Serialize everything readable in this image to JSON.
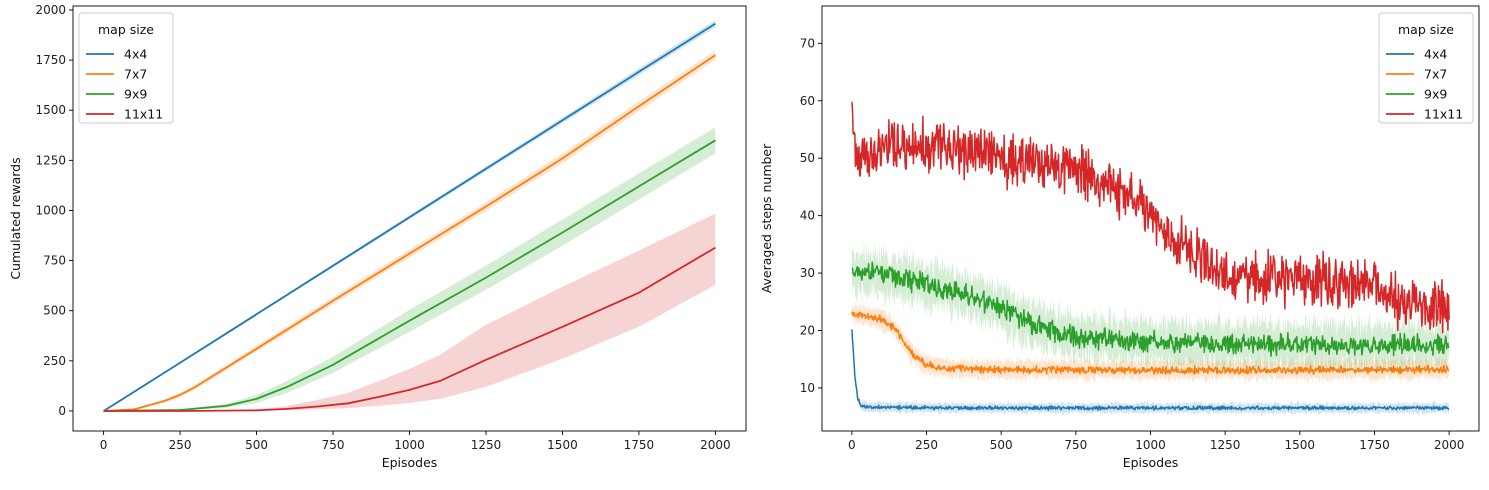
{
  "chart_data": [
    {
      "type": "line",
      "xlabel": "Episodes",
      "ylabel": "Cumulated rewards",
      "xlim": [
        -100,
        2100
      ],
      "ylim": [
        -100,
        2020
      ],
      "xticks": [
        0,
        250,
        500,
        750,
        1000,
        1250,
        1500,
        1750,
        2000
      ],
      "yticks": [
        0,
        250,
        500,
        750,
        1000,
        1250,
        1500,
        1750,
        2000
      ],
      "legend": {
        "title": "map size",
        "position": "upper-left"
      },
      "series": [
        {
          "name": "4x4",
          "color": "#1f77b4",
          "x": [
            0,
            250,
            500,
            750,
            1000,
            1250,
            1500,
            1750,
            2000
          ],
          "values": [
            0,
            240,
            482,
            724,
            966,
            1208,
            1450,
            1692,
            1932
          ],
          "band_lower": [
            0,
            236,
            476,
            716,
            956,
            1196,
            1436,
            1676,
            1914
          ],
          "band_upper": [
            0,
            244,
            488,
            732,
            976,
            1220,
            1464,
            1708,
            1950
          ]
        },
        {
          "name": "7x7",
          "color": "#ff7f0e",
          "x": [
            0,
            100,
            200,
            250,
            300,
            500,
            750,
            1000,
            1250,
            1500,
            1750,
            2000
          ],
          "values": [
            0,
            8,
            50,
            80,
            120,
            310,
            550,
            785,
            1020,
            1260,
            1520,
            1775
          ],
          "band_lower": [
            0,
            5,
            42,
            70,
            108,
            295,
            532,
            765,
            998,
            1236,
            1495,
            1752
          ],
          "band_upper": [
            0,
            11,
            58,
            90,
            132,
            325,
            568,
            805,
            1042,
            1284,
            1545,
            1798
          ]
        },
        {
          "name": "9x9",
          "color": "#2ca02c",
          "x": [
            0,
            250,
            400,
            500,
            600,
            750,
            1000,
            1250,
            1500,
            1750,
            2000
          ],
          "values": [
            0,
            5,
            25,
            60,
            120,
            230,
            450,
            665,
            890,
            1120,
            1350
          ],
          "band_lower": [
            0,
            3,
            15,
            40,
            90,
            190,
            395,
            605,
            825,
            1055,
            1285
          ],
          "band_upper": [
            0,
            7,
            35,
            80,
            150,
            270,
            505,
            725,
            955,
            1185,
            1415
          ]
        },
        {
          "name": "11x11",
          "color": "#d62728",
          "x": [
            0,
            250,
            500,
            600,
            700,
            800,
            900,
            1000,
            1100,
            1250,
            1500,
            1750,
            2000
          ],
          "values": [
            0,
            0,
            3,
            10,
            22,
            38,
            70,
            105,
            150,
            255,
            420,
            590,
            815
          ],
          "band_lower": [
            0,
            0,
            1,
            4,
            8,
            14,
            25,
            40,
            60,
            120,
            260,
            420,
            630
          ],
          "band_upper": [
            0,
            0,
            8,
            25,
            55,
            90,
            150,
            210,
            280,
            430,
            620,
            800,
            985
          ]
        }
      ]
    },
    {
      "type": "line",
      "xlabel": "Episodes",
      "ylabel": "Averaged steps number",
      "xlim": [
        -100,
        2100
      ],
      "ylim": [
        2.5,
        76.5
      ],
      "xticks": [
        0,
        250,
        500,
        750,
        1000,
        1250,
        1500,
        1750,
        2000
      ],
      "yticks": [
        10,
        20,
        30,
        40,
        50,
        60,
        70
      ],
      "legend": {
        "title": "map size",
        "position": "upper-right"
      },
      "series": [
        {
          "name": "4x4",
          "color": "#1f77b4",
          "x": [
            0,
            10,
            20,
            30,
            50,
            100,
            500,
            1000,
            1500,
            2000
          ],
          "values": [
            20,
            12,
            8,
            7,
            6.7,
            6.6,
            6.5,
            6.5,
            6.5,
            6.5
          ],
          "noise": 0.4,
          "band": 0.8
        },
        {
          "name": "7x7",
          "color": "#ff7f0e",
          "x": [
            0,
            100,
            150,
            200,
            250,
            300,
            500,
            1000,
            1500,
            2000
          ],
          "values": [
            23,
            22,
            20,
            16,
            14,
            13.5,
            13.2,
            13.1,
            13.1,
            13.2
          ],
          "noise": 0.8,
          "band": 1.5
        },
        {
          "name": "9x9",
          "color": "#2ca02c",
          "x": [
            0,
            100,
            250,
            400,
            500,
            600,
            750,
            1000,
            1250,
            1500,
            1750,
            2000
          ],
          "values": [
            30,
            30,
            28,
            26,
            24,
            21,
            19,
            18,
            17.5,
            17.5,
            17.5,
            17.5
          ],
          "noise": 2.2,
          "band": 3.5
        },
        {
          "name": "11x11",
          "color": "#d62728",
          "x": [
            0,
            10,
            100,
            250,
            500,
            750,
            900,
            1000,
            1100,
            1250,
            1500,
            1750,
            1800,
            2000
          ],
          "values": [
            58,
            50,
            52,
            52,
            50,
            48,
            44,
            40,
            35,
            30,
            29,
            28,
            25,
            24
          ],
          "noise": 5.5,
          "band": 0
        }
      ]
    }
  ]
}
